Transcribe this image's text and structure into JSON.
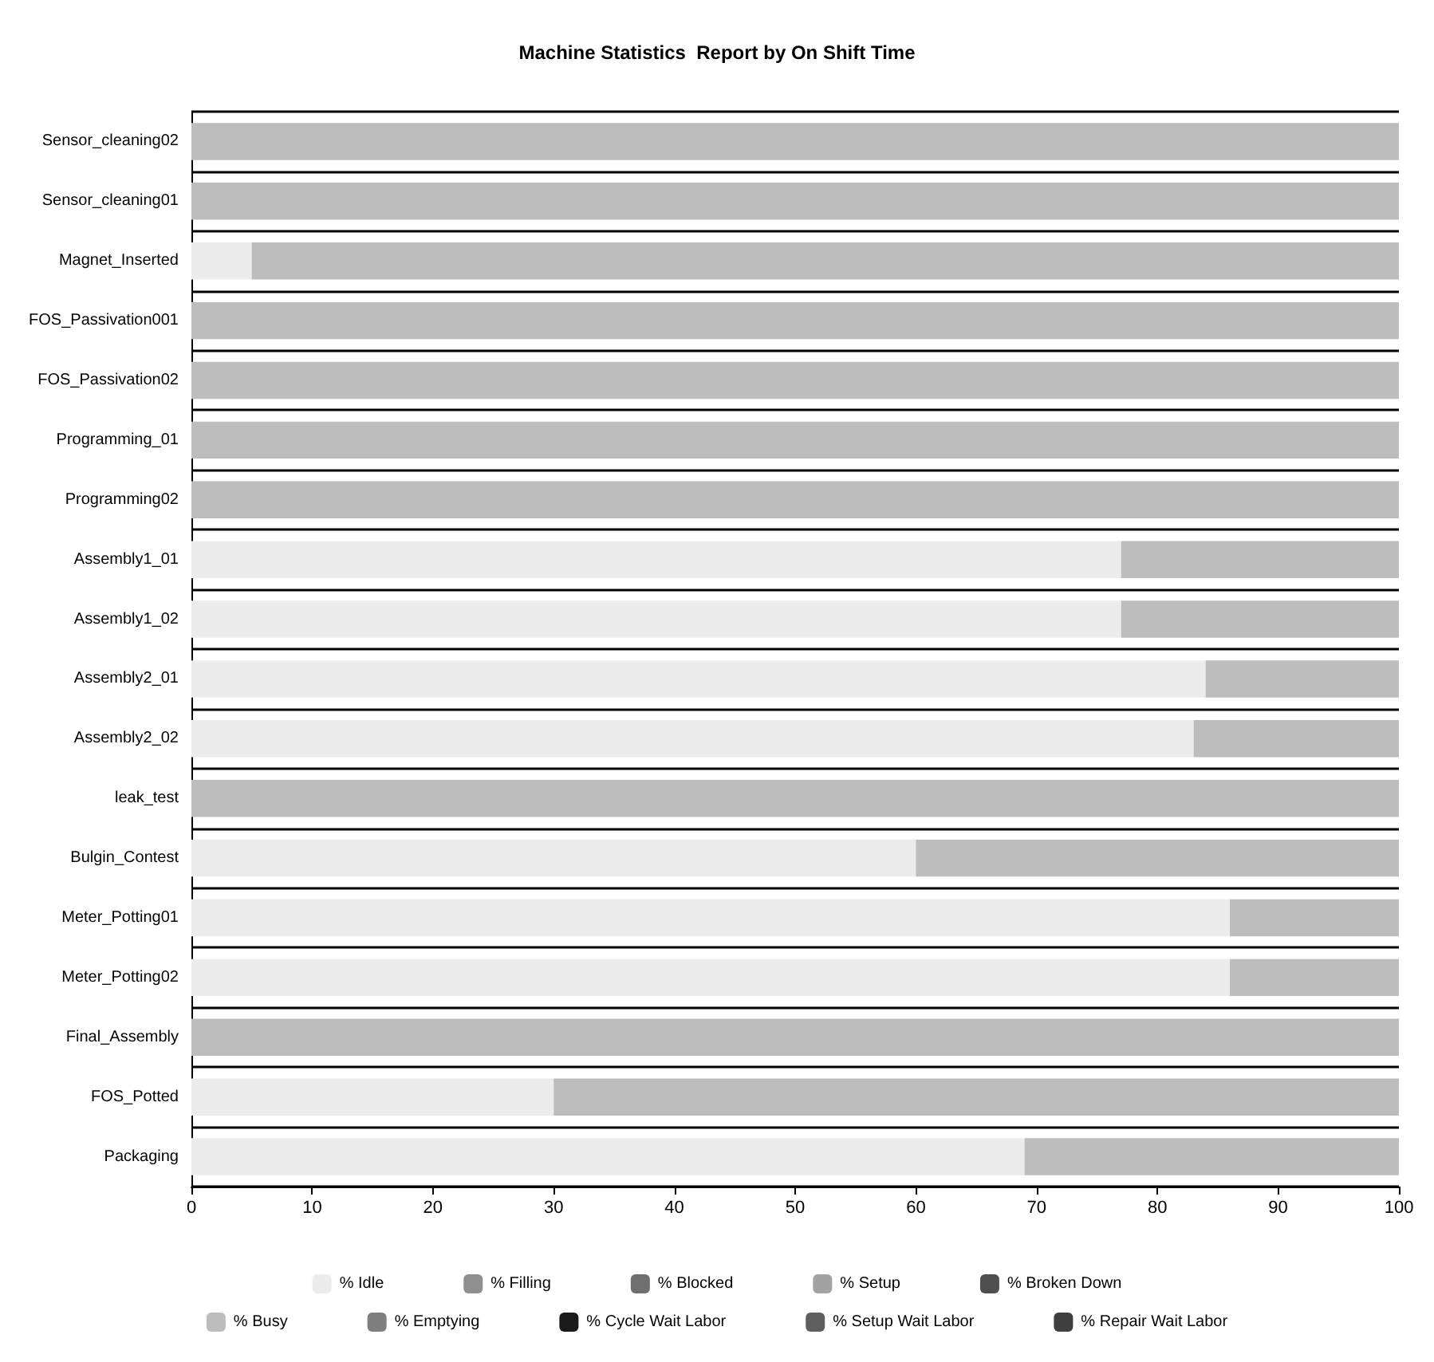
{
  "chart_data": {
    "type": "bar",
    "orientation": "horizontal",
    "stacked": true,
    "title": "Machine Statistics  Report by On Shift Time",
    "categories": [
      "Sensor_cleaning02",
      "Sensor_cleaning01",
      "Magnet_Inserted",
      "FOS_Passivation001",
      "FOS_Passivation02",
      "Programming_01",
      "Programming02",
      "Assembly1_01",
      "Assembly1_02",
      "Assembly2_01",
      "Assembly2_02",
      "leak_test",
      "Bulgin_Contest",
      "Meter_Potting01",
      "Meter_Potting02",
      "Final_Assembly",
      "FOS_Potted",
      "Packaging"
    ],
    "series": [
      {
        "name": "% Idle",
        "color": "#ececec",
        "values": [
          0,
          0,
          5,
          0,
          0,
          0,
          0,
          77,
          77,
          84,
          83,
          0,
          60,
          86,
          86,
          0,
          30,
          69
        ]
      },
      {
        "name": "% Busy",
        "color": "#bdbdbd",
        "values": [
          100,
          100,
          95,
          100,
          100,
          100,
          100,
          23,
          23,
          16,
          17,
          100,
          40,
          14,
          14,
          100,
          70,
          31
        ]
      },
      {
        "name": "% Filling",
        "color": "#8f8f8f",
        "values": [
          0,
          0,
          0,
          0,
          0,
          0,
          0,
          0,
          0,
          0,
          0,
          0,
          0,
          0,
          0,
          0,
          0,
          0
        ]
      },
      {
        "name": "% Emptying",
        "color": "#7f7f7f",
        "values": [
          0,
          0,
          0,
          0,
          0,
          0,
          0,
          0,
          0,
          0,
          0,
          0,
          0,
          0,
          0,
          0,
          0,
          0
        ]
      },
      {
        "name": "% Blocked",
        "color": "#6f6f6f",
        "values": [
          0,
          0,
          0,
          0,
          0,
          0,
          0,
          0,
          0,
          0,
          0,
          0,
          0,
          0,
          0,
          0,
          0,
          0
        ]
      },
      {
        "name": "% Cycle Wait Labor",
        "color": "#1a1a1a",
        "values": [
          0,
          0,
          0,
          0,
          0,
          0,
          0,
          0,
          0,
          0,
          0,
          0,
          0,
          0,
          0,
          0,
          0,
          0
        ]
      },
      {
        "name": "% Setup",
        "color": "#a3a3a3",
        "values": [
          0,
          0,
          0,
          0,
          0,
          0,
          0,
          0,
          0,
          0,
          0,
          0,
          0,
          0,
          0,
          0,
          0,
          0
        ]
      },
      {
        "name": "% Setup Wait Labor",
        "color": "#5f5f5f",
        "values": [
          0,
          0,
          0,
          0,
          0,
          0,
          0,
          0,
          0,
          0,
          0,
          0,
          0,
          0,
          0,
          0,
          0,
          0
        ]
      },
      {
        "name": "% Broken Down",
        "color": "#4f4f4f",
        "values": [
          0,
          0,
          0,
          0,
          0,
          0,
          0,
          0,
          0,
          0,
          0,
          0,
          0,
          0,
          0,
          0,
          0,
          0
        ]
      },
      {
        "name": "% Repair Wait Labor",
        "color": "#3f3f3f",
        "values": [
          0,
          0,
          0,
          0,
          0,
          0,
          0,
          0,
          0,
          0,
          0,
          0,
          0,
          0,
          0,
          0,
          0,
          0
        ]
      }
    ],
    "xlim": [
      0,
      100
    ],
    "xticks": [
      0,
      10,
      20,
      30,
      40,
      50,
      60,
      70,
      80,
      90,
      100
    ],
    "legend": "bottom"
  }
}
